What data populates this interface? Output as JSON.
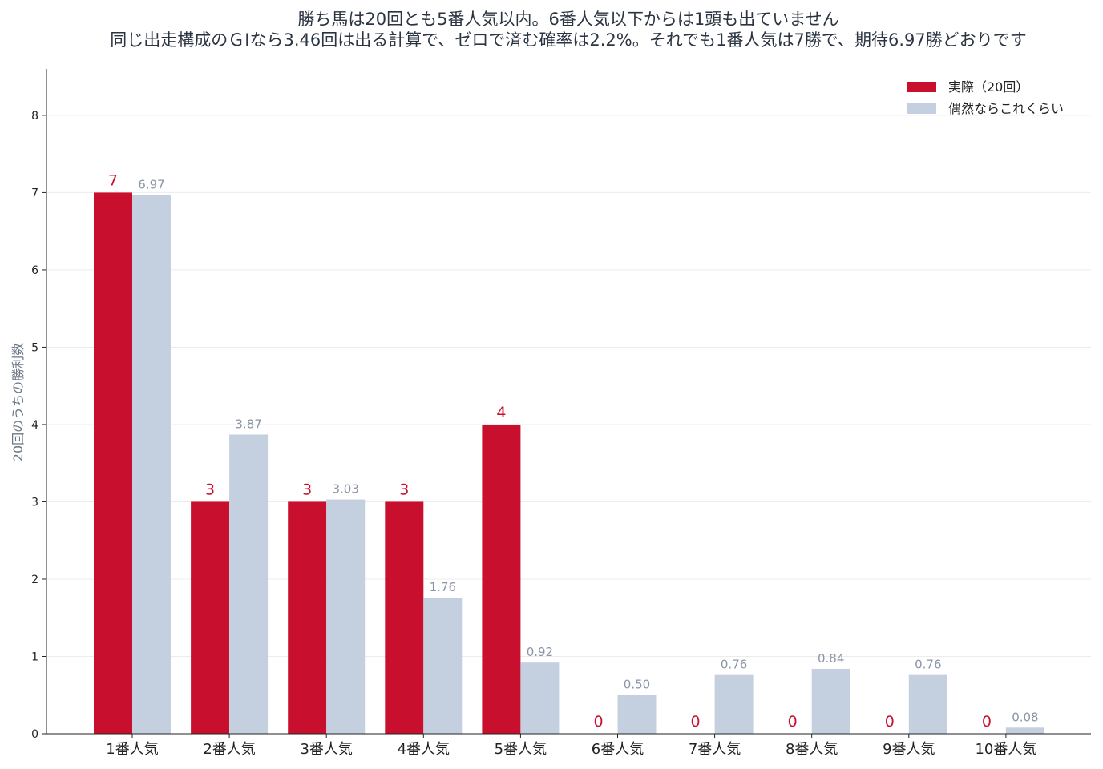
{
  "chart_data": {
    "type": "bar",
    "title_lines": [
      "勝ち馬は20回とも5番人気以内。6番人気以下からは1頭も出ていません",
      "同じ出走構成のＧⅠなら3.46回は出る計算で、ゼロで済む確率は2.2%。それでも1番人気は7勝で、期待6.97勝どおりです"
    ],
    "xlabel": "",
    "ylabel": "20回のうちの勝利数",
    "ylim": [
      0,
      8.6
    ],
    "yticks": [
      0,
      1,
      2,
      3,
      4,
      5,
      6,
      7,
      8
    ],
    "grid": "horizontal",
    "legend_position": "top-right",
    "categories": [
      "1番人気",
      "2番人気",
      "3番人気",
      "4番人気",
      "5番人気",
      "6番人気",
      "7番人気",
      "8番人気",
      "9番人気",
      "10番人気"
    ],
    "series": [
      {
        "name": "実際（20回）",
        "color": "#c8102e",
        "values": [
          7,
          3,
          3,
          3,
          4,
          0,
          0,
          0,
          0,
          0
        ],
        "labels": [
          "7",
          "3",
          "3",
          "3",
          "4",
          "0",
          "0",
          "0",
          "0",
          "0"
        ]
      },
      {
        "name": "偶然ならこれくらい",
        "color": "#c4d0e0",
        "label_color": "#8a95a5",
        "values": [
          6.97,
          3.87,
          3.03,
          1.76,
          0.92,
          0.5,
          0.76,
          0.84,
          0.76,
          0.08
        ],
        "labels": [
          "6.97",
          "3.87",
          "3.03",
          "1.76",
          "0.92",
          "0.50",
          "0.76",
          "0.84",
          "0.76",
          "0.08"
        ]
      }
    ]
  }
}
